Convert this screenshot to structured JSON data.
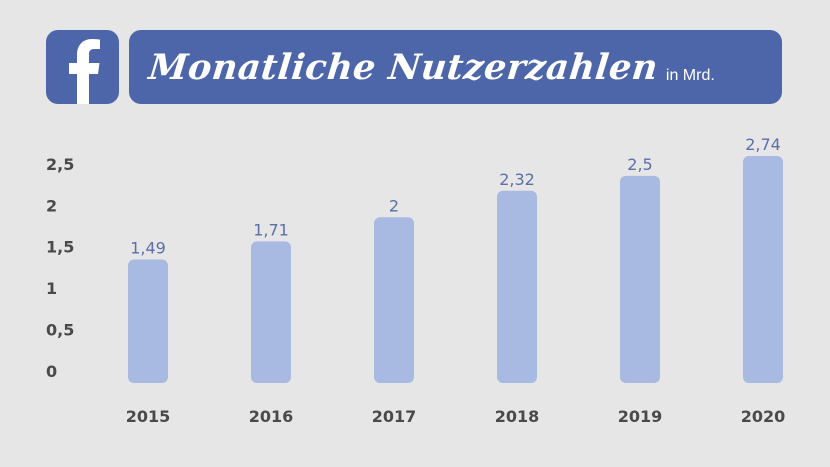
{
  "header": {
    "logo_icon": "facebook-f-icon",
    "title": "Monatliche Nutzerzahlen",
    "unit": "in Mrd."
  },
  "colors": {
    "brand": "#4d66aa",
    "bar": "#a8b9e2",
    "data_label": "#5b6fa9",
    "tick": "#4a4a4a",
    "background": "#e6e6e6"
  },
  "chart_data": {
    "type": "bar",
    "categories": [
      "2015",
      "2016",
      "2017",
      "2018",
      "2019",
      "2020"
    ],
    "values": [
      1.49,
      1.71,
      2,
      2.32,
      2.5,
      2.74
    ],
    "data_labels": [
      "1,49",
      "1,71",
      "2",
      "2,32",
      "2,5",
      "2,74"
    ],
    "ylim": [
      0,
      2.74
    ],
    "yticks": [
      0,
      0.5,
      1,
      1.5,
      2,
      2.5
    ],
    "ytick_labels": [
      "0",
      "0,5",
      "1",
      "1,5",
      "2",
      "2,5"
    ],
    "grid": false,
    "legend": "none",
    "xlabel": "",
    "ylabel": ""
  }
}
